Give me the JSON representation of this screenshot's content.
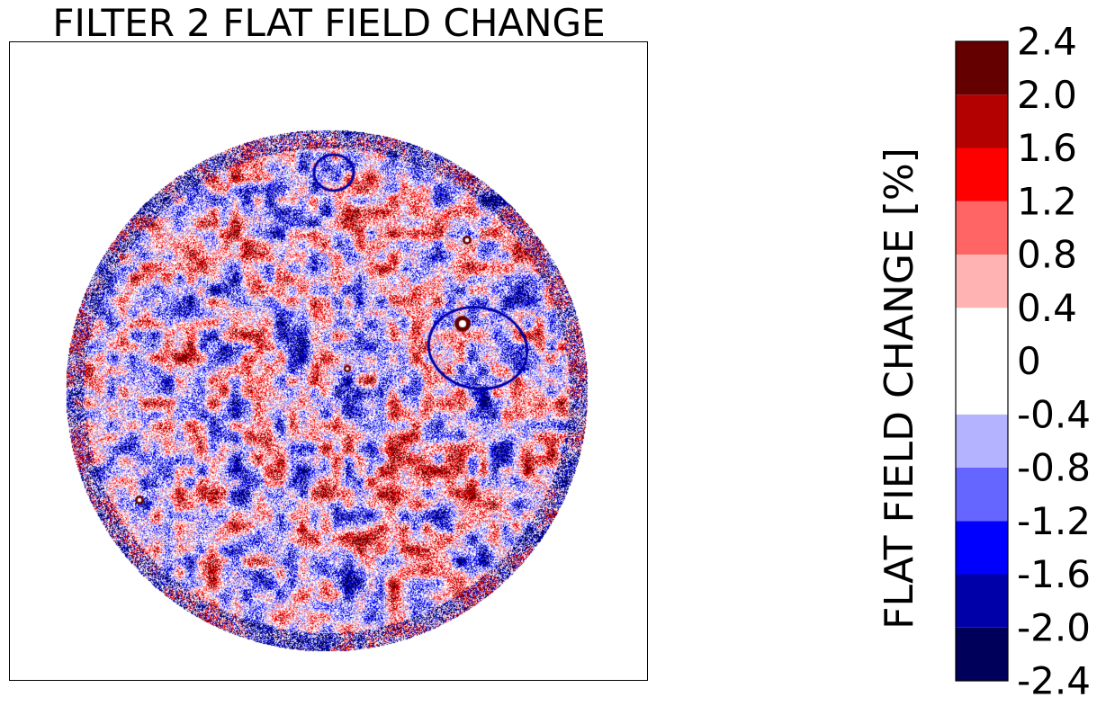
{
  "chart_data": {
    "type": "heatmap",
    "title": "FILTER 2 FLAT FIELD CHANGE",
    "colorbar": {
      "label": "FLAT FIELD CHANGE [%]",
      "levels": [
        -2.4,
        -2.0,
        -1.6,
        -1.2,
        -0.8,
        -0.4,
        0.4,
        0.8,
        1.2,
        1.6,
        2.0,
        2.4
      ],
      "tick_labels": [
        "-2.4",
        "-2.0",
        "-1.6",
        "-1.2",
        "-0.8",
        "-0.4",
        "0",
        "0.4",
        "0.8",
        "1.2",
        "1.6",
        "2.0",
        "2.4"
      ],
      "colors": [
        "#00005a",
        "#0000a8",
        "#0000ff",
        "#6565ff",
        "#b3b3ff",
        "#ffffff",
        "#ffb3b3",
        "#ff6565",
        "#ff0000",
        "#b30000",
        "#640000"
      ]
    },
    "xticks": [],
    "yticks": [],
    "grid": false,
    "colormap_name": "seismic"
  }
}
